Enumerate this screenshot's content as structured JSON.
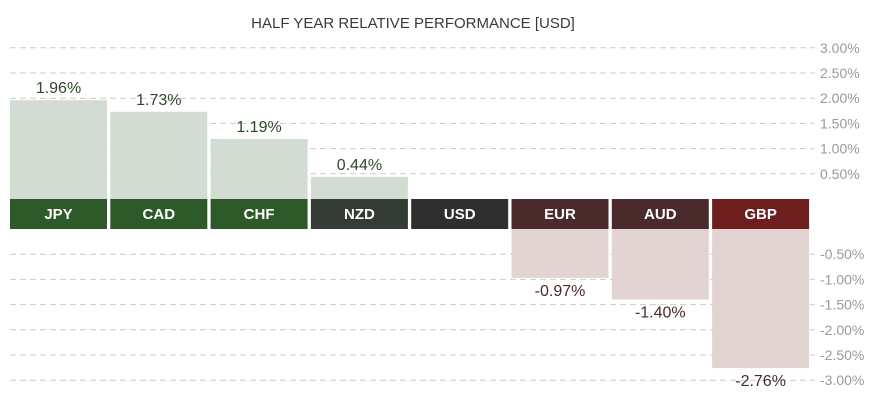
{
  "chart_data": {
    "type": "bar",
    "title": "HALF YEAR RELATIVE PERFORMANCE  [USD]",
    "xlabel": "",
    "ylabel": "",
    "categories": [
      "JPY",
      "CAD",
      "CHF",
      "NZD",
      "USD",
      "EUR",
      "AUD",
      "GBP"
    ],
    "values": [
      1.96,
      1.73,
      1.19,
      0.44,
      0.0,
      -0.97,
      -1.4,
      -2.76
    ],
    "value_labels": [
      "1.96%",
      "1.73%",
      "1.19%",
      "0.44%",
      "",
      "-0.97%",
      "-1.40%",
      "-2.76%"
    ],
    "ylim": [
      -3.0,
      3.0
    ],
    "positive_ticks": [
      "3.00%",
      "2.50%",
      "2.00%",
      "1.50%",
      "1.00%",
      "0.50%"
    ],
    "positive_tick_values": [
      3.0,
      2.5,
      2.0,
      1.5,
      1.0,
      0.5
    ],
    "negative_ticks": [
      "-0.50%",
      "-1.00%",
      "-1.50%",
      "-2.00%",
      "-2.50%",
      "-3.00%"
    ],
    "negative_tick_values": [
      -0.5,
      -1.0,
      -1.5,
      -2.0,
      -2.5,
      -3.0
    ],
    "grid": true,
    "legend": "none",
    "colors": {
      "positive_bar": "#d3dcd3",
      "negative_bar": "#e3d4d4",
      "grid": "#cccccc",
      "positive_text": "#2e4a2a",
      "negative_text": "#4a2a2a",
      "cat_fills": [
        "#2e5a2a",
        "#2e5a2a",
        "#2e5a2a",
        "#353b35",
        "#2f2f2f",
        "#4a2a2a",
        "#4a2a2a",
        "#6e1e1e"
      ]
    }
  }
}
